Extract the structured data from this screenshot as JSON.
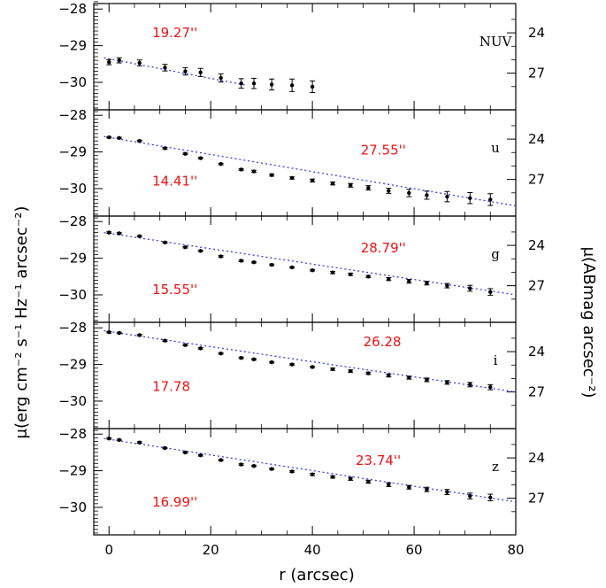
{
  "chart_data": {
    "type": "scatter",
    "title": "",
    "xlabel": "r (arcsec)",
    "ylabel_left": "μ(erg cm⁻² s⁻¹ Hz⁻¹ arcsec⁻²)",
    "ylabel_right": "μ(ABmag arcsec⁻²)",
    "xlim": [
      -3,
      80
    ],
    "x_ticks": [
      0,
      20,
      40,
      60,
      80
    ],
    "y_ticks_left": [
      -28,
      -29,
      -30
    ],
    "y_ticks_right": [
      24,
      27
    ],
    "colors": {
      "fit": "#3a3af0",
      "annotation": "#ee1111",
      "points": "#000000"
    },
    "panels": [
      {
        "name": "NUV",
        "ylim": [
          -27.85,
          -30.75
        ],
        "right_tick_pos": [
          -28.65,
          -29.75
        ],
        "annotations": [
          {
            "text": "19.27''",
            "x": 8.5,
            "y": -28.65
          }
        ],
        "fit": [
          [
            -1,
            -29.33
          ],
          [
            27,
            -30.08
          ]
        ],
        "points": [
          {
            "x": 0,
            "y": -29.45,
            "err": 0.07
          },
          {
            "x": 2,
            "y": -29.4,
            "err": 0.07
          },
          {
            "x": 6,
            "y": -29.47,
            "err": 0.08
          },
          {
            "x": 11,
            "y": -29.6,
            "err": 0.09
          },
          {
            "x": 15,
            "y": -29.7,
            "err": 0.1
          },
          {
            "x": 18,
            "y": -29.73,
            "err": 0.11
          },
          {
            "x": 22,
            "y": -29.88,
            "err": 0.11
          },
          {
            "x": 26,
            "y": -30.03,
            "err": 0.13
          },
          {
            "x": 28.5,
            "y": -30.03,
            "err": 0.14
          },
          {
            "x": 32,
            "y": -30.06,
            "err": 0.15
          },
          {
            "x": 36,
            "y": -30.08,
            "err": 0.17
          },
          {
            "x": 40,
            "y": -30.12,
            "err": 0.16
          }
        ]
      },
      {
        "name": "u",
        "ylim": [
          -27.85,
          -30.75
        ],
        "right_tick_pos": [
          -28.65,
          -29.75
        ],
        "annotations": [
          {
            "text": "27.55''",
            "x": 49.5,
            "y": -28.95
          },
          {
            "text": "14.41''",
            "x": 8.5,
            "y": -29.8
          }
        ],
        "fit": [
          [
            -1,
            -28.58
          ],
          [
            80,
            -30.47
          ]
        ],
        "points": [
          {
            "x": 0,
            "y": -28.6,
            "err": 0.02
          },
          {
            "x": 2,
            "y": -28.62,
            "err": 0.02
          },
          {
            "x": 6,
            "y": -28.7,
            "err": 0.02
          },
          {
            "x": 11,
            "y": -28.9,
            "err": 0.02
          },
          {
            "x": 15,
            "y": -29.05,
            "err": 0.02
          },
          {
            "x": 18,
            "y": -29.17,
            "err": 0.02
          },
          {
            "x": 22,
            "y": -29.33,
            "err": 0.02
          },
          {
            "x": 26,
            "y": -29.48,
            "err": 0.02
          },
          {
            "x": 28.5,
            "y": -29.53,
            "err": 0.03
          },
          {
            "x": 32,
            "y": -29.63,
            "err": 0.03
          },
          {
            "x": 36,
            "y": -29.71,
            "err": 0.03
          },
          {
            "x": 40,
            "y": -29.78,
            "err": 0.04
          },
          {
            "x": 44,
            "y": -29.86,
            "err": 0.04
          },
          {
            "x": 47.5,
            "y": -29.91,
            "err": 0.05
          },
          {
            "x": 51,
            "y": -29.98,
            "err": 0.06
          },
          {
            "x": 55,
            "y": -30.06,
            "err": 0.07
          },
          {
            "x": 59,
            "y": -30.12,
            "err": 0.1
          },
          {
            "x": 62.5,
            "y": -30.18,
            "err": 0.11
          },
          {
            "x": 66.5,
            "y": -30.22,
            "err": 0.14
          },
          {
            "x": 71,
            "y": -30.26,
            "err": 0.15
          },
          {
            "x": 75,
            "y": -30.3,
            "err": 0.16
          }
        ]
      },
      {
        "name": "g",
        "ylim": [
          -27.85,
          -30.75
        ],
        "right_tick pos": [],
        "right_tick_pos": [
          -28.65,
          -29.75
        ],
        "annotations": [
          {
            "text": "28.79''",
            "x": 49.5,
            "y": -28.72
          },
          {
            "text": "15.55''",
            "x": 8.5,
            "y": -29.85
          }
        ],
        "fit": [
          [
            -1,
            -28.3
          ],
          [
            80,
            -30.0
          ]
        ],
        "points": [
          {
            "x": 0,
            "y": -28.3,
            "err": 0.02
          },
          {
            "x": 2,
            "y": -28.32,
            "err": 0.02
          },
          {
            "x": 6,
            "y": -28.4,
            "err": 0.02
          },
          {
            "x": 11,
            "y": -28.57,
            "err": 0.02
          },
          {
            "x": 15,
            "y": -28.7,
            "err": 0.02
          },
          {
            "x": 18,
            "y": -28.8,
            "err": 0.02
          },
          {
            "x": 22,
            "y": -28.95,
            "err": 0.02
          },
          {
            "x": 26,
            "y": -29.07,
            "err": 0.02
          },
          {
            "x": 28.5,
            "y": -29.11,
            "err": 0.02
          },
          {
            "x": 32,
            "y": -29.18,
            "err": 0.02
          },
          {
            "x": 36,
            "y": -29.25,
            "err": 0.02
          },
          {
            "x": 40,
            "y": -29.33,
            "err": 0.02
          },
          {
            "x": 44,
            "y": -29.39,
            "err": 0.03
          },
          {
            "x": 47.5,
            "y": -29.44,
            "err": 0.03
          },
          {
            "x": 51,
            "y": -29.5,
            "err": 0.03
          },
          {
            "x": 55,
            "y": -29.57,
            "err": 0.04
          },
          {
            "x": 59,
            "y": -29.63,
            "err": 0.05
          },
          {
            "x": 62.5,
            "y": -29.68,
            "err": 0.05
          },
          {
            "x": 66.5,
            "y": -29.75,
            "err": 0.06
          },
          {
            "x": 71,
            "y": -29.82,
            "err": 0.08
          },
          {
            "x": 75,
            "y": -29.92,
            "err": 0.09
          }
        ]
      },
      {
        "name": "i",
        "ylim": [
          -27.85,
          -30.75
        ],
        "right_tick_pos": [
          -28.65,
          -29.75
        ],
        "annotations": [
          {
            "text": "26.28",
            "x": 50,
            "y": -28.38
          },
          {
            "text": "17.78",
            "x": 8.5,
            "y": -29.6
          }
        ],
        "fit": [
          [
            -1,
            -28.08
          ],
          [
            80,
            -29.75
          ]
        ],
        "points": [
          {
            "x": 0,
            "y": -28.12,
            "err": 0.02
          },
          {
            "x": 2,
            "y": -28.14,
            "err": 0.02
          },
          {
            "x": 6,
            "y": -28.2,
            "err": 0.02
          },
          {
            "x": 11,
            "y": -28.35,
            "err": 0.02
          },
          {
            "x": 15,
            "y": -28.47,
            "err": 0.02
          },
          {
            "x": 18,
            "y": -28.56,
            "err": 0.02
          },
          {
            "x": 22,
            "y": -28.7,
            "err": 0.02
          },
          {
            "x": 26,
            "y": -28.82,
            "err": 0.02
          },
          {
            "x": 28.5,
            "y": -28.86,
            "err": 0.02
          },
          {
            "x": 32,
            "y": -28.94,
            "err": 0.02
          },
          {
            "x": 36,
            "y": -29.0,
            "err": 0.02
          },
          {
            "x": 40,
            "y": -29.07,
            "err": 0.02
          },
          {
            "x": 44,
            "y": -29.13,
            "err": 0.03
          },
          {
            "x": 47.5,
            "y": -29.18,
            "err": 0.03
          },
          {
            "x": 51,
            "y": -29.24,
            "err": 0.03
          },
          {
            "x": 55,
            "y": -29.3,
            "err": 0.04
          },
          {
            "x": 59,
            "y": -29.36,
            "err": 0.04
          },
          {
            "x": 62.5,
            "y": -29.42,
            "err": 0.05
          },
          {
            "x": 66.5,
            "y": -29.49,
            "err": 0.05
          },
          {
            "x": 71,
            "y": -29.55,
            "err": 0.06
          },
          {
            "x": 75,
            "y": -29.62,
            "err": 0.07
          }
        ]
      },
      {
        "name": "z",
        "ylim": [
          -27.85,
          -30.75
        ],
        "right_tick_pos": [
          -28.65,
          -29.75
        ],
        "annotations": [
          {
            "text": "23.74''",
            "x": 48.5,
            "y": -28.72
          },
          {
            "text": "16.99''",
            "x": 8.5,
            "y": -29.85
          }
        ],
        "fit": [
          [
            -1,
            -28.12
          ],
          [
            80,
            -29.85
          ]
        ],
        "points": [
          {
            "x": 0,
            "y": -28.12,
            "err": 0.02
          },
          {
            "x": 2,
            "y": -28.16,
            "err": 0.02
          },
          {
            "x": 6,
            "y": -28.23,
            "err": 0.02
          },
          {
            "x": 11,
            "y": -28.38,
            "err": 0.02
          },
          {
            "x": 15,
            "y": -28.5,
            "err": 0.02
          },
          {
            "x": 18,
            "y": -28.58,
            "err": 0.02
          },
          {
            "x": 22,
            "y": -28.71,
            "err": 0.02
          },
          {
            "x": 26,
            "y": -28.83,
            "err": 0.02
          },
          {
            "x": 28.5,
            "y": -28.87,
            "err": 0.02
          },
          {
            "x": 32,
            "y": -28.95,
            "err": 0.02
          },
          {
            "x": 36,
            "y": -29.02,
            "err": 0.02
          },
          {
            "x": 40,
            "y": -29.1,
            "err": 0.03
          },
          {
            "x": 44,
            "y": -29.17,
            "err": 0.03
          },
          {
            "x": 47.5,
            "y": -29.22,
            "err": 0.04
          },
          {
            "x": 51,
            "y": -29.3,
            "err": 0.04
          },
          {
            "x": 55,
            "y": -29.38,
            "err": 0.05
          },
          {
            "x": 59,
            "y": -29.45,
            "err": 0.05
          },
          {
            "x": 62.5,
            "y": -29.51,
            "err": 0.06
          },
          {
            "x": 66.5,
            "y": -29.58,
            "err": 0.07
          },
          {
            "x": 71,
            "y": -29.69,
            "err": 0.08
          },
          {
            "x": 75,
            "y": -29.73,
            "err": 0.09
          }
        ]
      }
    ]
  }
}
